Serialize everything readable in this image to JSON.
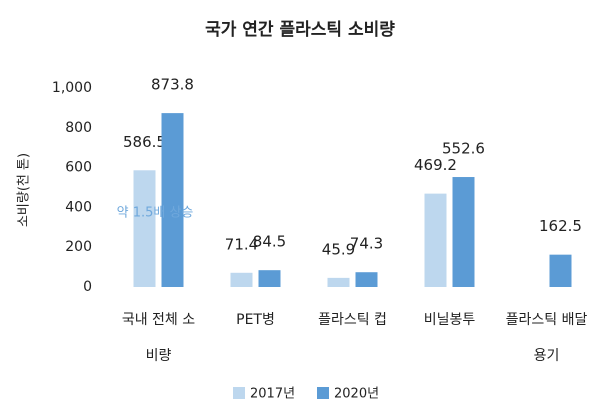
{
  "chart_data": {
    "type": "bar",
    "title": "국가 연간 플라스틱 소비량",
    "y_label": "소비량(천 톤)",
    "categories": [
      "국내 전체 소비량",
      "PET병",
      "플라스틱 컵",
      "비닐봉투",
      "플라스틱 배달용기"
    ],
    "series": [
      {
        "name": "2017년",
        "color": "#bdd7ee",
        "values": [
          586.5,
          71.4,
          45.9,
          469.2,
          null
        ]
      },
      {
        "name": "2020년",
        "color": "#5b9bd5",
        "values": [
          873.8,
          84.5,
          74.3,
          552.6,
          162.5
        ]
      }
    ],
    "annotation": "약 1.5배 상승",
    "ylim": [
      0,
      1000
    ],
    "yticks": [
      0,
      200,
      400,
      600,
      800,
      {
        "value": 1000,
        "label": "1,000"
      }
    ],
    "grid": false,
    "legend": "bottom"
  }
}
